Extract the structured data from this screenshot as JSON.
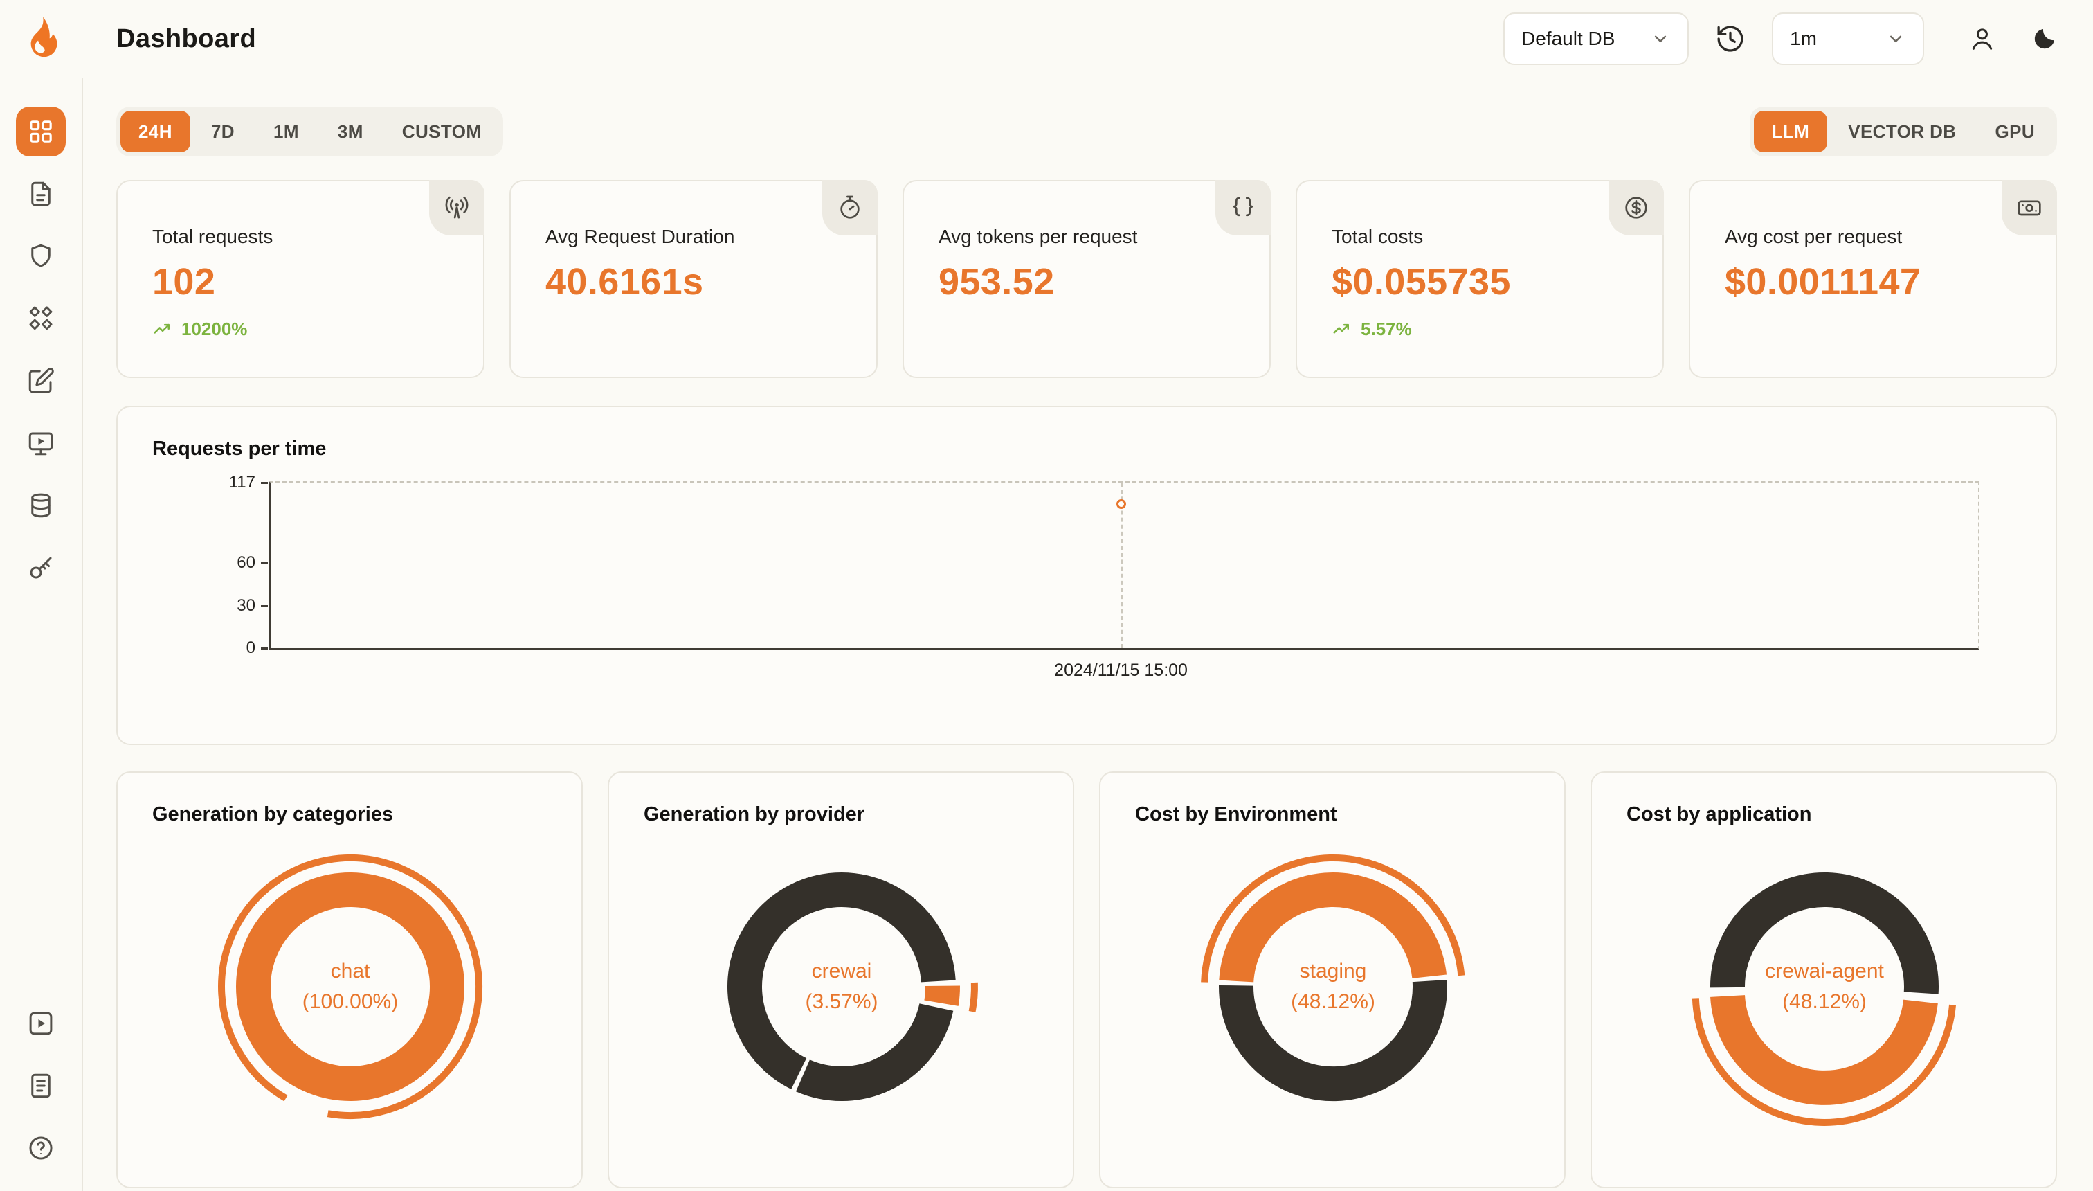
{
  "colors": {
    "accent": "#e8762c",
    "dark": "#34302a",
    "green": "#7cb33f"
  },
  "header": {
    "title": "Dashboard",
    "db_select": {
      "value": "Default DB"
    },
    "interval_select": {
      "value": "1m"
    },
    "icons": [
      "history",
      "user",
      "moon"
    ]
  },
  "sidebar": {
    "icons": [
      "grid",
      "file-text",
      "shield",
      "nodes",
      "edit-note",
      "monitor-play",
      "database",
      "key"
    ],
    "bottom_icons": [
      "play-square",
      "docs",
      "help"
    ]
  },
  "filters": {
    "ranges": [
      "24H",
      "7D",
      "1M",
      "3M",
      "CUSTOM"
    ],
    "active_range": "24H",
    "sources": [
      "LLM",
      "VECTOR DB",
      "GPU"
    ],
    "active_source": "LLM"
  },
  "stats": [
    {
      "label": "Total requests",
      "value": "102",
      "delta": "10200%",
      "icon": "broadcast"
    },
    {
      "label": "Avg Request Duration",
      "value": "40.6161s",
      "icon": "timer"
    },
    {
      "label": "Avg tokens per request",
      "value": "953.52",
      "icon": "braces"
    },
    {
      "label": "Total costs",
      "value": "$0.055735",
      "delta": "5.57%",
      "icon": "circle-dollar"
    },
    {
      "label": "Avg cost per request",
      "value": "$0.0011147",
      "icon": "banknote"
    }
  ],
  "chart_data": [
    {
      "type": "line",
      "title": "Requests per time",
      "xlabel": "",
      "ylabel": "",
      "ylim": [
        0,
        117
      ],
      "yticks": [
        117,
        60,
        30,
        0
      ],
      "points": [
        {
          "x": "2024/11/15 15:00",
          "y": 102
        }
      ],
      "x_position_pct": 49.8,
      "grid": "dashed-frame",
      "legend": false
    },
    {
      "type": "pie",
      "title": "Generation by categories",
      "center": [
        "chat",
        "(100.00%)"
      ],
      "rotation": 0,
      "slices": [
        {
          "label": "chat",
          "pct": 100,
          "color": "accent"
        }
      ],
      "outer_arcs": [
        {
          "start": 210,
          "end": 550
        }
      ]
    },
    {
      "type": "pie",
      "title": "Generation by provider",
      "center": [
        "crewai",
        "(3.57%)"
      ],
      "rotation": 88,
      "slices": [
        {
          "label": "crewai",
          "pct": 3.57,
          "color": "accent",
          "offset": 3
        },
        {
          "pct": 28.9,
          "color": "dark"
        },
        {
          "pct": 67.53,
          "color": "dark"
        }
      ],
      "outer_arcs": [
        {
          "start": 88,
          "end": 101,
          "offset": 3
        }
      ]
    },
    {
      "type": "pie",
      "title": "Cost by Environment",
      "center": [
        "staging",
        "(48.12%)"
      ],
      "rotation": 272,
      "slices": [
        {
          "label": "staging",
          "pct": 48.12,
          "color": "accent"
        },
        {
          "pct": 51.88,
          "color": "dark"
        }
      ],
      "outer_arcs": [
        {
          "start": 272,
          "end": 445
        }
      ]
    },
    {
      "type": "pie",
      "title": "Cost by application",
      "center": [
        "crewai-agent",
        "(48.12%)"
      ],
      "rotation": 95,
      "slices": [
        {
          "label": "crewai-agent",
          "pct": 48.12,
          "color": "accent",
          "offset": 3
        },
        {
          "pct": 51.88,
          "color": "dark"
        }
      ],
      "outer_arcs": [
        {
          "start": 95,
          "end": 268,
          "offset": 5
        }
      ]
    }
  ]
}
